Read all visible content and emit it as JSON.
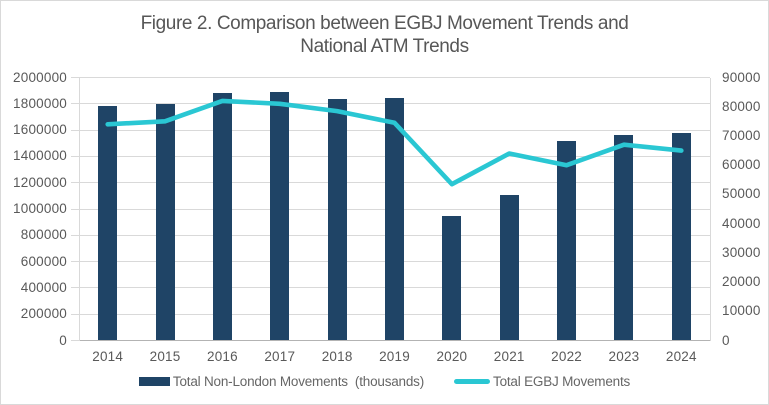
{
  "figure": {
    "title_line1": "Figure 2. Comparison between EGBJ Movement Trends and",
    "title_line2": "National ATM Trends"
  },
  "legend": {
    "bar_label": "Total Non-London Movements  (thousands)",
    "line_label": "Total EGBJ Movements"
  },
  "colors": {
    "bar": "#1F4466",
    "line": "#2AC7D3",
    "grid": "#D9D9D9",
    "axis_line": "#B3B3B3",
    "text": "#595959"
  },
  "chart_data": {
    "type": "bar",
    "subtype": "combo-bar-line-dual-axis",
    "title": "Figure 2. Comparison between EGBJ Movement Trends and National ATM Trends",
    "categories": [
      "2014",
      "2015",
      "2016",
      "2017",
      "2018",
      "2019",
      "2020",
      "2021",
      "2022",
      "2023",
      "2024"
    ],
    "series": [
      {
        "name": "Total Non-London Movements  (thousands)",
        "type": "bar",
        "axis": "left",
        "color": "#1F4466",
        "values": [
          1780000,
          1800000,
          1880000,
          1890000,
          1835000,
          1845000,
          945000,
          1110000,
          1520000,
          1560000,
          1575000
        ]
      },
      {
        "name": "Total EGBJ Movements",
        "type": "line",
        "axis": "right",
        "color": "#2AC7D3",
        "values": [
          74000,
          75000,
          82000,
          81000,
          78500,
          74500,
          53500,
          64000,
          60000,
          67000,
          65000
        ]
      }
    ],
    "left_axis": {
      "min": 0,
      "max": 2000000,
      "step": 200000,
      "ticks": [
        "2000000",
        "1800000",
        "1600000",
        "1400000",
        "1200000",
        "1000000",
        "800000",
        "600000",
        "400000",
        "200000",
        "0"
      ]
    },
    "right_axis": {
      "min": 0,
      "max": 90000,
      "step": 10000,
      "ticks": [
        "90000",
        "80000",
        "70000",
        "60000",
        "50000",
        "40000",
        "30000",
        "20000",
        "10000",
        "0"
      ]
    },
    "grid": true,
    "legend_position": "bottom"
  }
}
